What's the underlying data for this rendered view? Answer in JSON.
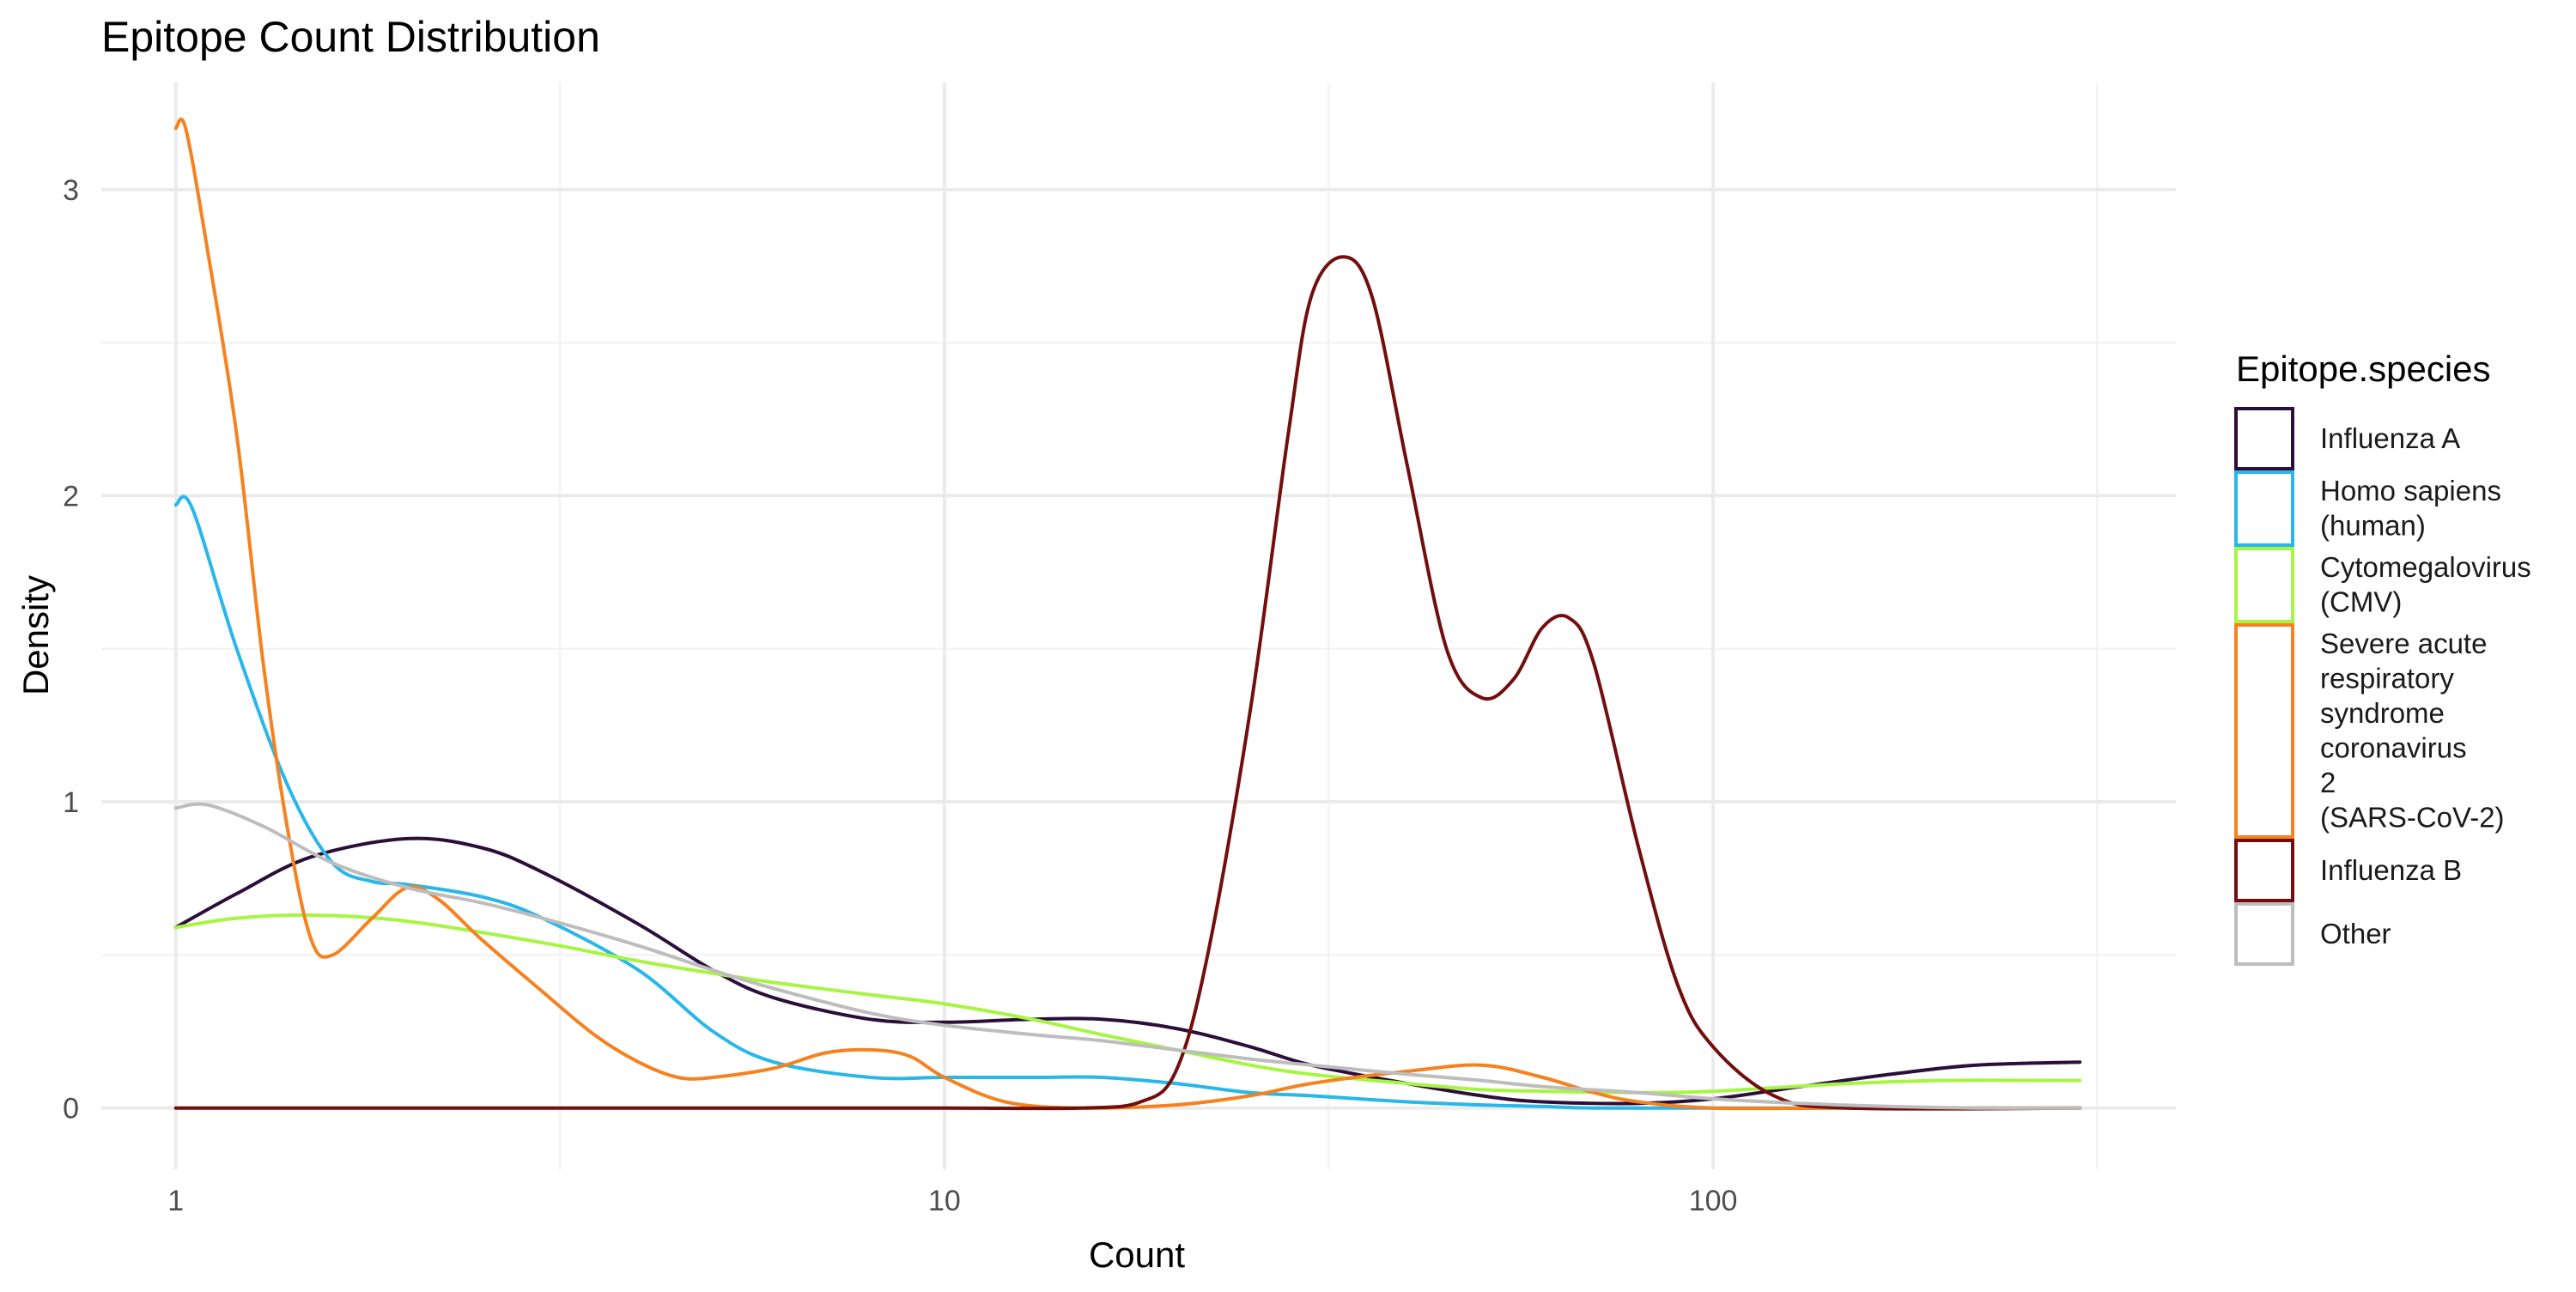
{
  "chart_data": {
    "type": "line",
    "title": "Epitope Count Distribution",
    "xlabel": "Count",
    "ylabel": "Density",
    "x_scale": "log10",
    "xlim": [
      0.8,
      400
    ],
    "ylim": [
      -0.2,
      3.35
    ],
    "x_ticks": [
      1,
      10,
      100
    ],
    "x_tick_labels": [
      "1",
      "10",
      "100"
    ],
    "x_minor_ticks": [
      3.16,
      31.6,
      316
    ],
    "y_ticks": [
      0,
      1,
      2,
      3
    ],
    "y_tick_labels": [
      "0",
      "1",
      "2",
      "3"
    ],
    "y_minor_ticks": [
      0.5,
      1.5,
      2.5
    ],
    "grid": true,
    "legend": {
      "title": "Epitope.species",
      "position": "right"
    },
    "series": [
      {
        "name": "Influenza A",
        "color": "#2b0f3a",
        "x": [
          1,
          1.2,
          1.5,
          2,
          2.5,
          3,
          4,
          5,
          6,
          8,
          10,
          13,
          16,
          20,
          25,
          30,
          40,
          50,
          60,
          80,
          100,
          130,
          170,
          220,
          300
        ],
        "y": [
          0.59,
          0.7,
          0.82,
          0.88,
          0.85,
          0.77,
          0.6,
          0.45,
          0.36,
          0.29,
          0.28,
          0.29,
          0.29,
          0.26,
          0.2,
          0.14,
          0.08,
          0.04,
          0.02,
          0.015,
          0.03,
          0.07,
          0.11,
          0.14,
          0.15
        ]
      },
      {
        "name": "Homo sapiens\n(human)",
        "color": "#29b6e8",
        "x": [
          1,
          1.05,
          1.2,
          1.4,
          1.6,
          1.8,
          2,
          2.5,
          3,
          4,
          5,
          6,
          8,
          10,
          13,
          16,
          20,
          25,
          30,
          40,
          50,
          60,
          70,
          100,
          200,
          300
        ],
        "y": [
          1.97,
          1.96,
          1.5,
          1.05,
          0.8,
          0.74,
          0.73,
          0.69,
          0.62,
          0.45,
          0.25,
          0.15,
          0.1,
          0.1,
          0.1,
          0.1,
          0.08,
          0.05,
          0.04,
          0.02,
          0.01,
          0.005,
          0,
          0,
          0,
          0
        ]
      },
      {
        "name": "Cytomegalovirus\n(CMV)",
        "color": "#a6f542",
        "x": [
          1,
          1.2,
          1.5,
          2,
          3,
          4,
          5,
          6,
          8,
          10,
          13,
          16,
          20,
          25,
          30,
          40,
          50,
          60,
          80,
          100,
          150,
          200,
          300
        ],
        "y": [
          0.59,
          0.62,
          0.63,
          0.61,
          0.54,
          0.48,
          0.44,
          0.41,
          0.37,
          0.34,
          0.29,
          0.24,
          0.19,
          0.14,
          0.11,
          0.08,
          0.06,
          0.055,
          0.05,
          0.055,
          0.08,
          0.09,
          0.09
        ]
      },
      {
        "name": "Severe acute\nrespiratory\nsyndrome\ncoronavirus\n2\n(SARS-CoV-2)",
        "color": "#f5821f",
        "x": [
          1,
          1.03,
          1.1,
          1.2,
          1.3,
          1.4,
          1.5,
          1.6,
          1.8,
          2,
          2.2,
          2.5,
          3,
          3.5,
          4,
          4.5,
          5,
          6,
          7,
          8,
          9,
          10,
          12,
          15,
          20,
          25,
          30,
          40,
          50,
          60,
          70,
          80,
          100,
          150,
          300
        ],
        "y": [
          3.2,
          3.2,
          2.8,
          2.2,
          1.45,
          0.9,
          0.55,
          0.5,
          0.62,
          0.72,
          0.68,
          0.55,
          0.38,
          0.24,
          0.15,
          0.1,
          0.1,
          0.13,
          0.18,
          0.19,
          0.17,
          0.1,
          0.02,
          0,
          0.01,
          0.04,
          0.08,
          0.12,
          0.14,
          0.1,
          0.05,
          0.02,
          0,
          0,
          0
        ]
      },
      {
        "name": "Influenza B",
        "color": "#720e0e",
        "x": [
          1,
          5,
          10,
          15,
          18,
          20,
          22,
          25,
          28,
          30,
          33,
          36,
          40,
          45,
          50,
          55,
          60,
          65,
          70,
          80,
          90,
          100,
          120,
          150,
          300
        ],
        "y": [
          0,
          0,
          0,
          0,
          0.02,
          0.12,
          0.5,
          1.3,
          2.2,
          2.65,
          2.78,
          2.65,
          2.1,
          1.5,
          1.34,
          1.4,
          1.57,
          1.6,
          1.45,
          0.85,
          0.4,
          0.2,
          0.04,
          0,
          0
        ]
      },
      {
        "name": "Other",
        "color": "#bdbdbd",
        "x": [
          1,
          1.1,
          1.3,
          1.6,
          2,
          2.5,
          3,
          4,
          5,
          6,
          8,
          10,
          13,
          16,
          20,
          25,
          30,
          40,
          50,
          60,
          80,
          100,
          130,
          170,
          220,
          300
        ],
        "y": [
          0.98,
          0.99,
          0.92,
          0.8,
          0.72,
          0.67,
          0.62,
          0.53,
          0.45,
          0.39,
          0.31,
          0.27,
          0.24,
          0.22,
          0.19,
          0.16,
          0.14,
          0.11,
          0.09,
          0.07,
          0.05,
          0.03,
          0.015,
          0.005,
          0,
          0
        ]
      }
    ]
  }
}
